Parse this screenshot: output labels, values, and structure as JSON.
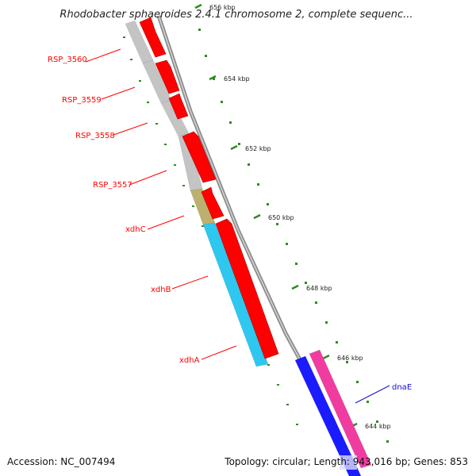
{
  "title": "Rhodobacter sphaeroides 2.4.1 chromosome 2, complete sequenc...",
  "footer": {
    "accession": "Accession: NC_007494",
    "summary": "Topology: circular; Length: 943,016 bp; Genes: 853"
  },
  "colors": {
    "backbone": "#8c8c8c",
    "tick": "#2e8b22",
    "forward_gene": "#ff0000",
    "gray_gene": "#c4c4c4",
    "xdhC": "#bdb06e",
    "xdhB": "#2ec7f0",
    "dnaE_blue": "#1b1bff",
    "dnaE_pink": "#f03ca0",
    "label_red": "#d01010",
    "label_blue": "#1010cc"
  },
  "ticks": [
    {
      "label": "656 kbp"
    },
    {
      "label": "654 kbp"
    },
    {
      "label": "652 kbp"
    },
    {
      "label": "650 kbp"
    },
    {
      "label": "648 kbp"
    },
    {
      "label": "646 kbp"
    },
    {
      "label": "644 kbp"
    }
  ],
  "genes": [
    {
      "name": "RSP_3560",
      "color": "#ff0000"
    },
    {
      "name": "RSP_3559",
      "color": "#ff0000"
    },
    {
      "name": "RSP_3558",
      "color": "#ff0000"
    },
    {
      "name": "RSP_3557",
      "color": "#ff0000"
    },
    {
      "name": "xdhC",
      "color": "#ff0000"
    },
    {
      "name": "xdhB",
      "color": "#ff0000"
    },
    {
      "name": "xdhA",
      "color": "#ff0000"
    },
    {
      "name": "dnaE",
      "color": "#1010cc"
    }
  ]
}
